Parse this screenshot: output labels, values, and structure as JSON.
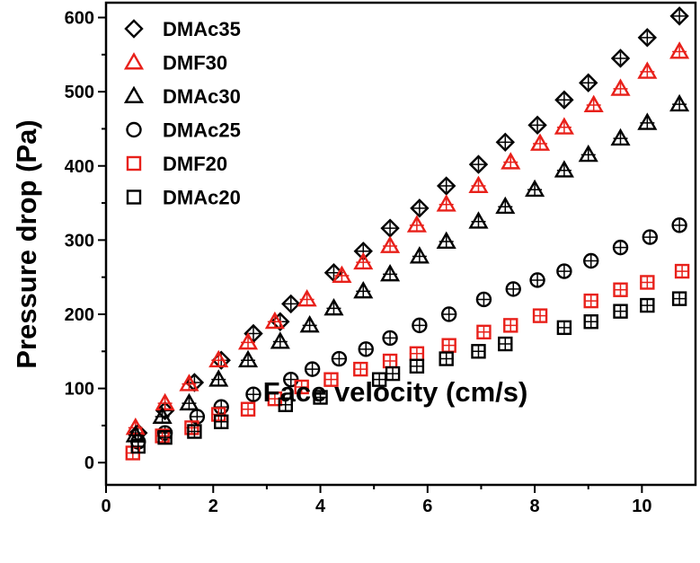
{
  "chart_data": {
    "type": "scatter",
    "xlabel": "Face velocity (cm/s)",
    "ylabel": "Pressure drop (Pa)",
    "xlim": [
      0,
      11
    ],
    "ylim": [
      -30,
      620
    ],
    "x_ticks": [
      0,
      2,
      4,
      6,
      8,
      10
    ],
    "y_ticks": [
      0,
      100,
      200,
      300,
      400,
      500,
      600
    ],
    "x_tick_labels": [
      "0",
      "2",
      "4",
      "6",
      "8",
      "10"
    ],
    "y_tick_labels": [
      "0",
      "100",
      "200",
      "300",
      "400",
      "500",
      "600"
    ],
    "legend_position": "top-left",
    "series": [
      {
        "name": "DMAc35",
        "marker": "diamond",
        "color": "#000000",
        "x": [
          0.6,
          1.1,
          1.65,
          2.15,
          2.75,
          3.25,
          3.45,
          4.25,
          4.8,
          5.3,
          5.85,
          6.35,
          6.95,
          7.45,
          8.05,
          8.55,
          9.0,
          9.6,
          10.1,
          10.7
        ],
        "y": [
          40,
          70,
          108,
          138,
          174,
          190,
          214,
          256,
          285,
          316,
          343,
          373,
          402,
          432,
          455,
          489,
          512,
          545,
          573,
          602
        ]
      },
      {
        "name": "DMF30",
        "marker": "triangle",
        "color": "#e8201a",
        "x": [
          0.55,
          1.1,
          1.55,
          2.1,
          2.65,
          3.15,
          3.75,
          4.4,
          4.8,
          5.3,
          5.8,
          6.35,
          6.95,
          7.55,
          8.1,
          8.55,
          9.1,
          9.6,
          10.1,
          10.7
        ],
        "y": [
          47,
          80,
          106,
          138,
          162,
          190,
          220,
          252,
          270,
          292,
          320,
          348,
          373,
          405,
          430,
          452,
          482,
          504,
          527,
          554
        ]
      },
      {
        "name": "DMAc30",
        "marker": "triangle",
        "color": "#000000",
        "x": [
          0.55,
          1.05,
          1.55,
          2.1,
          2.65,
          3.25,
          3.8,
          4.25,
          4.8,
          5.3,
          5.85,
          6.35,
          6.95,
          7.45,
          8.0,
          8.55,
          9.0,
          9.6,
          10.1,
          10.7
        ],
        "y": [
          37,
          62,
          80,
          112,
          138,
          163,
          185,
          208,
          231,
          254,
          278,
          298,
          325,
          345,
          368,
          394,
          415,
          437,
          458,
          483
        ]
      },
      {
        "name": "DMAc25",
        "marker": "circle",
        "color": "#000000",
        "x": [
          0.6,
          1.1,
          1.7,
          2.15,
          2.75,
          3.45,
          3.85,
          4.35,
          4.85,
          5.3,
          5.85,
          6.4,
          7.05,
          7.6,
          8.05,
          8.55,
          9.05,
          9.6,
          10.15,
          10.7
        ],
        "y": [
          28,
          40,
          62,
          75,
          92,
          112,
          126,
          140,
          153,
          168,
          185,
          200,
          220,
          234,
          246,
          258,
          272,
          290,
          304,
          320
        ]
      },
      {
        "name": "DMF20",
        "marker": "square",
        "color": "#e8201a",
        "x": [
          0.5,
          1.05,
          1.6,
          2.1,
          2.65,
          3.15,
          3.65,
          4.2,
          4.75,
          5.3,
          5.8,
          6.4,
          7.05,
          7.55,
          8.1,
          9.05,
          9.6,
          10.1,
          10.75
        ],
        "y": [
          13,
          36,
          47,
          65,
          72,
          86,
          102,
          112,
          126,
          137,
          147,
          158,
          176,
          185,
          198,
          218,
          233,
          243,
          258
        ]
      },
      {
        "name": "DMAc20",
        "marker": "square",
        "color": "#000000",
        "x": [
          0.6,
          1.1,
          1.65,
          2.15,
          3.35,
          4.0,
          5.1,
          5.35,
          5.8,
          6.35,
          6.95,
          7.45,
          8.55,
          9.05,
          9.6,
          10.1,
          10.7
        ],
        "y": [
          22,
          34,
          42,
          55,
          78,
          88,
          112,
          120,
          130,
          140,
          150,
          160,
          182,
          190,
          204,
          212,
          221
        ]
      }
    ]
  }
}
